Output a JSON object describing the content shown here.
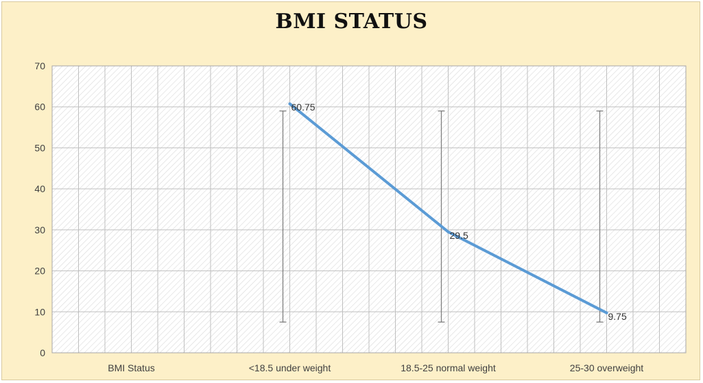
{
  "chart_data": {
    "type": "line",
    "title": "BMI STATUS",
    "categories": [
      "BMI Status",
      "<18.5 under weight",
      "18.5-25 normal weight",
      "25-30 overweight"
    ],
    "series": [
      {
        "values": [
          null,
          60.75,
          29.5,
          9.75
        ],
        "data_labels": [
          "",
          "60.75",
          "29.5",
          "9.75"
        ],
        "color": "#5b9bd5",
        "error_bars": [
          null,
          [
            7.5,
            59
          ],
          [
            7.5,
            59
          ],
          [
            7.5,
            59
          ]
        ]
      }
    ],
    "yticks": [
      "0",
      "10",
      "20",
      "30",
      "40",
      "50",
      "60",
      "70"
    ],
    "ylim": [
      0,
      70
    ],
    "grid": true,
    "legend": "none",
    "colors": {
      "background": "#fdf0c8",
      "plot_area": "#ffffff",
      "line": "#5b9bd5",
      "error_bar": "#7f7f7f",
      "grid": "#bfbfbf"
    }
  }
}
